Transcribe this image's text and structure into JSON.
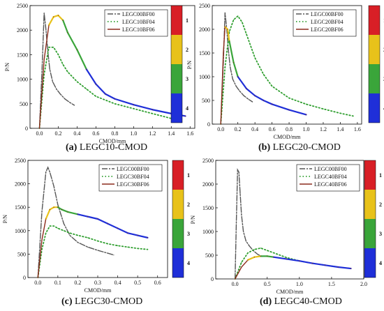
{
  "colors": {
    "s00": "#555555",
    "s04": "#2e9e2e",
    "s06": "#8b2a1b",
    "stage1": "#d81f26",
    "stage2": "#e8c21a",
    "stage3": "#3aa53a",
    "stage4": "#1f2fd8"
  },
  "stage_labels": [
    "1",
    "2",
    "3",
    "4"
  ],
  "chart_data": [
    {
      "type": "line",
      "caption_tag": "(a)",
      "caption_text": "LEGC10-CMOD",
      "xlabel": "CMOD/mm",
      "ylabel": "P/N",
      "xlim": [
        -0.1,
        1.65
      ],
      "ylim": [
        0,
        2500
      ],
      "xticks": [
        0.0,
        0.2,
        0.4,
        0.6,
        0.8,
        1.0,
        1.2,
        1.4,
        1.6
      ],
      "xticklabels": [
        "0.0",
        "0.2",
        "0.4",
        "0.6",
        "0.8",
        "1.0",
        "1.2",
        "1.4",
        "1.6"
      ],
      "yticks": [
        0,
        500,
        1000,
        1500,
        2000,
        2500
      ],
      "legend": [
        "LEGC00BF00",
        "LEGC10BF04",
        "LEGC10BF06"
      ],
      "series": [
        {
          "name": "LEGC00BF00",
          "x": [
            0.0,
            0.03,
            0.05,
            0.07,
            0.09,
            0.11,
            0.14,
            0.18,
            0.22,
            0.27,
            0.32,
            0.37
          ],
          "y": [
            0,
            1300,
            2350,
            2000,
            1550,
            1200,
            950,
            800,
            700,
            600,
            530,
            470
          ]
        },
        {
          "name": "LEGC10BF04",
          "x": [
            0.0,
            0.05,
            0.1,
            0.15,
            0.2,
            0.25,
            0.3,
            0.4,
            0.5,
            0.6,
            0.8,
            1.0,
            1.2,
            1.4,
            1.5
          ],
          "y": [
            0,
            1100,
            1650,
            1650,
            1500,
            1300,
            1150,
            950,
            800,
            650,
            500,
            400,
            300,
            200,
            120
          ]
        },
        {
          "name": "LEGC10BF06",
          "x": [
            0.0,
            0.05,
            0.1,
            0.15,
            0.2,
            0.25,
            0.3,
            0.4,
            0.5,
            0.6,
            0.7,
            0.8,
            1.0,
            1.2,
            1.4,
            1.55
          ],
          "y": [
            0,
            1400,
            2100,
            2270,
            2300,
            2200,
            1950,
            1600,
            1200,
            900,
            700,
            600,
            480,
            380,
            300,
            250
          ]
        }
      ]
    },
    {
      "type": "line",
      "caption_tag": "(b)",
      "caption_text": "LEGC20-CMOD",
      "xlabel": "CMOD/mm",
      "ylabel": "P/N",
      "xlim": [
        -0.1,
        1.65
      ],
      "ylim": [
        0,
        2500
      ],
      "xticks": [
        0.0,
        0.2,
        0.4,
        0.6,
        0.8,
        1.0,
        1.2,
        1.4,
        1.6
      ],
      "xticklabels": [
        "0.0",
        "0.2",
        "0.4",
        "0.6",
        "0.8",
        "1.0",
        "1.2",
        "1.4",
        "1.6"
      ],
      "yticks": [
        0,
        500,
        1000,
        1500,
        2000,
        2500
      ],
      "legend": [
        "LEGC00BF00",
        "LEGC20BF04",
        "LEGC20BF06"
      ],
      "series": [
        {
          "name": "LEGC00BF00",
          "x": [
            0.0,
            0.03,
            0.05,
            0.07,
            0.09,
            0.11,
            0.14,
            0.18,
            0.22,
            0.27,
            0.32,
            0.37
          ],
          "y": [
            0,
            1300,
            2350,
            2000,
            1550,
            1200,
            950,
            800,
            700,
            600,
            530,
            470
          ]
        },
        {
          "name": "LEGC20BF04",
          "x": [
            0.0,
            0.05,
            0.1,
            0.15,
            0.2,
            0.25,
            0.3,
            0.4,
            0.5,
            0.6,
            0.8,
            1.0,
            1.2,
            1.4,
            1.55
          ],
          "y": [
            0,
            1200,
            1950,
            2200,
            2280,
            2150,
            1900,
            1400,
            1050,
            800,
            550,
            420,
            320,
            230,
            170
          ]
        },
        {
          "name": "LEGC20BF06",
          "x": [
            0.0,
            0.03,
            0.05,
            0.08,
            0.1,
            0.15,
            0.2,
            0.3,
            0.4,
            0.5,
            0.6,
            0.8,
            1.0
          ],
          "y": [
            0,
            1500,
            2050,
            2000,
            1750,
            1300,
            1000,
            750,
            600,
            500,
            420,
            300,
            200
          ]
        }
      ]
    },
    {
      "type": "line",
      "caption_tag": "(c)",
      "caption_text": "LEGC30-CMOD",
      "xlabel": "CMOD/mm",
      "ylabel": "P/N",
      "xlim": [
        -0.05,
        0.65
      ],
      "ylim": [
        0,
        2500
      ],
      "xticks": [
        0.0,
        0.1,
        0.2,
        0.3,
        0.4,
        0.5,
        0.6
      ],
      "xticklabels": [
        "0.0",
        "0.1",
        "0.2",
        "0.3",
        "0.4",
        "0.5",
        "0.6"
      ],
      "yticks": [
        0,
        500,
        1000,
        1500,
        2000,
        2500
      ],
      "legend": [
        "LEGC00BF00",
        "LEGC30BF04",
        "LEGC30BF06"
      ],
      "series": [
        {
          "name": "LEGC00BF00",
          "x": [
            0.0,
            0.02,
            0.04,
            0.05,
            0.06,
            0.08,
            0.1,
            0.13,
            0.16,
            0.2,
            0.25,
            0.3,
            0.35,
            0.38
          ],
          "y": [
            0,
            1400,
            2250,
            2350,
            2250,
            1950,
            1550,
            1150,
            900,
            750,
            650,
            580,
            520,
            480
          ]
        },
        {
          "name": "LEGC30BF04",
          "x": [
            0.0,
            0.02,
            0.04,
            0.06,
            0.08,
            0.1,
            0.13,
            0.16,
            0.2,
            0.25,
            0.3,
            0.35,
            0.4,
            0.45,
            0.5,
            0.55
          ],
          "y": [
            0,
            600,
            950,
            1100,
            1100,
            1050,
            1000,
            950,
            900,
            850,
            780,
            720,
            680,
            650,
            620,
            600
          ]
        },
        {
          "name": "LEGC30BF06",
          "x": [
            0.0,
            0.02,
            0.04,
            0.06,
            0.08,
            0.1,
            0.12,
            0.15,
            0.2,
            0.25,
            0.3,
            0.35,
            0.4,
            0.45,
            0.5,
            0.55
          ],
          "y": [
            0,
            800,
            1250,
            1450,
            1500,
            1500,
            1450,
            1400,
            1350,
            1300,
            1250,
            1150,
            1050,
            950,
            900,
            850
          ]
        }
      ]
    },
    {
      "type": "line",
      "caption_tag": "(d)",
      "caption_text": "LEGC40-CMOD",
      "xlabel": "CMOD/mm",
      "ylabel": "P/N",
      "xlim": [
        -0.3,
        2.0
      ],
      "ylim": [
        0,
        2500
      ],
      "xticks": [
        0.0,
        0.5,
        1.0,
        1.5,
        2.0
      ],
      "xticklabels": [
        "0.0",
        "0.5",
        "1.0",
        "1.5",
        "2.0"
      ],
      "yticks": [
        0,
        500,
        1000,
        1500,
        2000,
        2500
      ],
      "legend": [
        "LEGC00BF00",
        "LEGC40BF04",
        "LEGC40BF06"
      ],
      "series": [
        {
          "name": "LEGC00BF00",
          "x": [
            0.0,
            0.02,
            0.04,
            0.06,
            0.08,
            0.1,
            0.13,
            0.17,
            0.22,
            0.28,
            0.35,
            0.42
          ],
          "y": [
            0,
            1200,
            2300,
            2250,
            1800,
            1350,
            1000,
            800,
            700,
            600,
            520,
            470
          ]
        },
        {
          "name": "LEGC40BF04",
          "x": [
            0.0,
            0.1,
            0.2,
            0.3,
            0.4,
            0.5,
            0.6,
            0.8,
            1.0,
            1.2,
            1.4,
            1.6,
            1.8
          ],
          "y": [
            0,
            350,
            550,
            620,
            650,
            600,
            550,
            450,
            380,
            330,
            290,
            250,
            220
          ]
        },
        {
          "name": "LEGC40BF06",
          "x": [
            0.0,
            0.1,
            0.2,
            0.3,
            0.4,
            0.5,
            0.6,
            0.8,
            1.0,
            1.2,
            1.4,
            1.6,
            1.8
          ],
          "y": [
            0,
            250,
            400,
            460,
            480,
            480,
            460,
            420,
            380,
            330,
            290,
            250,
            220
          ]
        }
      ]
    }
  ]
}
